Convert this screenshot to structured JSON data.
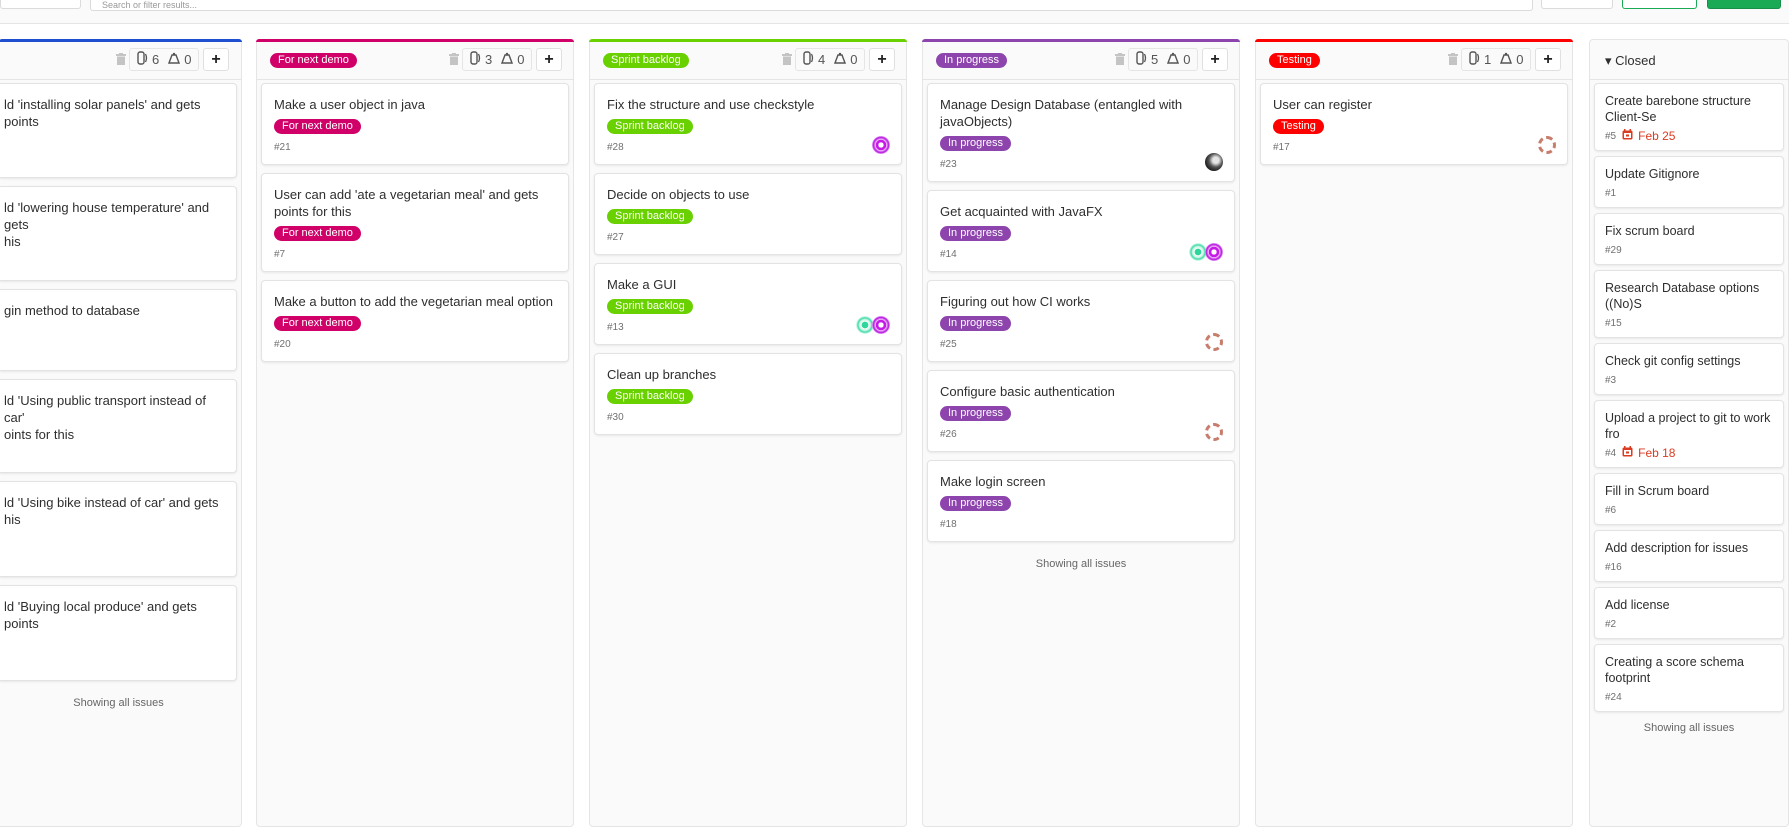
{
  "topbar": {
    "search_placeholder": "Search or filter results..."
  },
  "colors": {
    "open": "#1f4fd1",
    "for_next_demo": "#d10069",
    "sprint_backlog": "#69d100",
    "in_progress": "#8e44ad",
    "testing": "#ff0000",
    "primary_green": "#1aaa55"
  },
  "showing_all": "Showing all issues",
  "columns": [
    {
      "label": "",
      "color": "#1f4fd1",
      "issue_count": "6",
      "weight": "0",
      "show_footer": true,
      "issues": [
        {
          "title": "ld 'installing solar panels' and gets points"
        },
        {
          "title": "ld 'lowering house temperature' and gets\nhis"
        },
        {
          "title": "gin method to database"
        },
        {
          "title": "ld 'Using public transport instead of car'\noints for this"
        },
        {
          "title": "ld 'Using bike instead of car' and gets\nhis"
        },
        {
          "title": "ld 'Buying local produce' and gets points"
        }
      ]
    },
    {
      "label": "For next demo",
      "color": "#d10069",
      "issue_count": "3",
      "weight": "0",
      "show_footer": false,
      "issues": [
        {
          "title": "Make a user object in java",
          "label": "For next demo",
          "number": "#21",
          "avatars": []
        },
        {
          "title": "User can add 'ate a vegetarian meal' and gets points for this",
          "label": "For next demo",
          "number": "#7",
          "avatars": []
        },
        {
          "title": "Make a button to add the vegetarian meal option",
          "label": "For next demo",
          "number": "#20",
          "avatars": []
        }
      ]
    },
    {
      "label": "Sprint backlog",
      "color": "#69d100",
      "issue_count": "4",
      "weight": "0",
      "show_footer": false,
      "issues": [
        {
          "title": "Fix the structure and use checkstyle",
          "label": "Sprint backlog",
          "number": "#28",
          "avatars": [
            "identicon-purple"
          ]
        },
        {
          "title": "Decide on objects to use",
          "label": "Sprint backlog",
          "number": "#27",
          "avatars": []
        },
        {
          "title": "Make a GUI",
          "label": "Sprint backlog",
          "number": "#13",
          "avatars": [
            "identicon-green",
            "identicon-purple"
          ]
        },
        {
          "title": "Clean up branches",
          "label": "Sprint backlog",
          "number": "#30",
          "avatars": []
        }
      ]
    },
    {
      "label": "In progress",
      "color": "#8e44ad",
      "issue_count": "5",
      "weight": "0",
      "show_footer": true,
      "issues": [
        {
          "title": "Manage Design Database (entangled with javaObjects)",
          "label": "In progress",
          "number": "#23",
          "avatars": [
            "photo"
          ]
        },
        {
          "title": "Get acquainted with JavaFX",
          "label": "In progress",
          "number": "#14",
          "avatars": [
            "identicon-green",
            "identicon-purple"
          ]
        },
        {
          "title": "Figuring out how CI works",
          "label": "In progress",
          "number": "#25",
          "avatars": [
            "identicon-ring"
          ]
        },
        {
          "title": "Configure basic authentication",
          "label": "In progress",
          "number": "#26",
          "avatars": [
            "identicon-ring"
          ]
        },
        {
          "title": "Make login screen",
          "label": "In progress",
          "number": "#18",
          "avatars": []
        }
      ]
    },
    {
      "label": "Testing",
      "color": "#ff0000",
      "issue_count": "1",
      "weight": "0",
      "show_footer": false,
      "issues": [
        {
          "title": "User can register",
          "label": "Testing",
          "number": "#17",
          "avatars": [
            "identicon-ring"
          ]
        }
      ]
    }
  ],
  "closed": {
    "title": "Closed",
    "issues": [
      {
        "title": "Create barebone structure Client-Se",
        "number": "#5",
        "due": "Feb 25"
      },
      {
        "title": "Update Gitignore",
        "number": "#1"
      },
      {
        "title": "Fix scrum board",
        "number": "#29"
      },
      {
        "title": "Research Database options ((No)S",
        "number": "#15"
      },
      {
        "title": "Check git config settings",
        "number": "#3"
      },
      {
        "title": "Upload a project to git to work fro",
        "number": "#4",
        "due": "Feb 18"
      },
      {
        "title": "Fill in Scrum board",
        "number": "#6"
      },
      {
        "title": "Add description for issues",
        "number": "#16"
      },
      {
        "title": "Add license",
        "number": "#2"
      },
      {
        "title": "Creating a score schema footprint",
        "number": "#24"
      }
    ]
  }
}
